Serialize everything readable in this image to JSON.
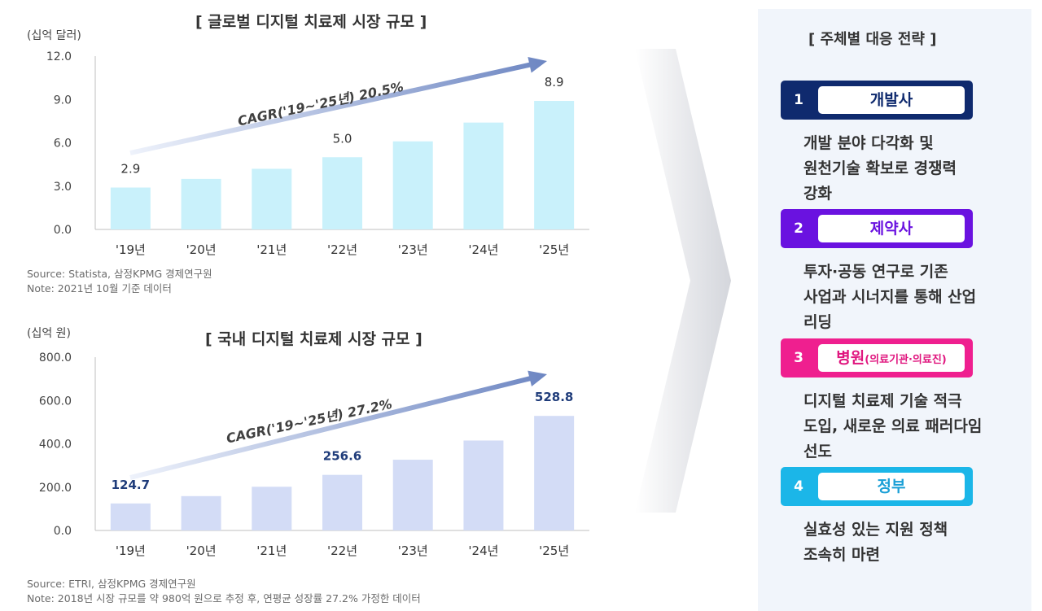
{
  "charts": {
    "global": {
      "title": "[ 글로벌 디지털 치료제 시장 규모 ]",
      "unit": "(십억 달러)",
      "cagr": "CAGR('19~'25년) 20.5%",
      "source": "Source: Statista, 삼정KPMG 경제연구원",
      "note": "Note: 2021년 10월 기준 데이터"
    },
    "domestic": {
      "title": "[ 국내 디지털 치료제 시장 규모 ]",
      "unit": "(십억 원)",
      "cagr": "CAGR('19~'25년) 27.2%",
      "source": "Source: ETRI, 삼정KPMG 경제연구원",
      "note": "Note: 2018년 시장 규모를 약 980억 원으로 추정 후, 연평균 성장률 27.2% 가정한 데이터"
    }
  },
  "chart_data": [
    {
      "type": "bar",
      "title": "[ 글로벌 디지털 치료제 시장 규모 ]",
      "ylabel": "(십억 달러)",
      "categories": [
        "'19년",
        "'20년",
        "'21년",
        "'22년",
        "'23년",
        "'24년",
        "'25년"
      ],
      "values": [
        2.9,
        3.5,
        4.2,
        5.0,
        6.1,
        7.4,
        8.9
      ],
      "data_labels": [
        "2.9",
        "",
        "",
        "5.0",
        "",
        "",
        "8.9"
      ],
      "yticks": [
        "0.0",
        "3.0",
        "6.0",
        "9.0",
        "12.0"
      ],
      "ylim": [
        0,
        12
      ],
      "bar_color": "#c9f1fb",
      "label_color": "#333333",
      "grid": false
    },
    {
      "type": "bar",
      "title": "[ 국내 디지털 치료제 시장 규모 ]",
      "ylabel": "(십억 원)",
      "categories": [
        "'19년",
        "'20년",
        "'21년",
        "'22년",
        "'23년",
        "'24년",
        "'25년"
      ],
      "values": [
        124.7,
        158.6,
        201.8,
        256.6,
        326.5,
        415.2,
        528.8
      ],
      "data_labels": [
        "124.7",
        "",
        "",
        "256.6",
        "",
        "",
        "528.8"
      ],
      "yticks": [
        "0.0",
        "200.0",
        "400.0",
        "600.0",
        "800.0"
      ],
      "ylim": [
        0,
        800
      ],
      "bar_color": "#d3dcf6",
      "label_color": "#1f3c7a",
      "grid": false
    }
  ],
  "panel": {
    "title": "[ 주체별 대응 전략 ]",
    "items": [
      {
        "num": "1",
        "label": "개발사",
        "sub": "",
        "color": "#0f2a6e",
        "label_color": "#0f2a6e",
        "desc": [
          "개발 분야 다각화 및",
          "원천기술 확보로 경쟁력",
          "강화"
        ]
      },
      {
        "num": "2",
        "label": "제약사",
        "sub": "",
        "color": "#6a12e0",
        "label_color": "#6a12e0",
        "desc": [
          "투자·공동 연구로 기존",
          "사업과 시너지를 통해 산업",
          "리딩"
        ]
      },
      {
        "num": "3",
        "label": "병원",
        "sub": "(의료기관·의료진)",
        "color": "#ef1f8f",
        "label_color": "#e0167f",
        "desc": [
          "디지털 치료제 기술 적극",
          "도입, 새로운 의료 패러다임",
          "선도"
        ]
      },
      {
        "num": "4",
        "label": "정부",
        "sub": "",
        "color": "#1bb6e8",
        "label_color": "#1a9fd6",
        "desc": [
          "실효성 있는 지원 정책",
          "조속히 마련"
        ]
      }
    ]
  }
}
